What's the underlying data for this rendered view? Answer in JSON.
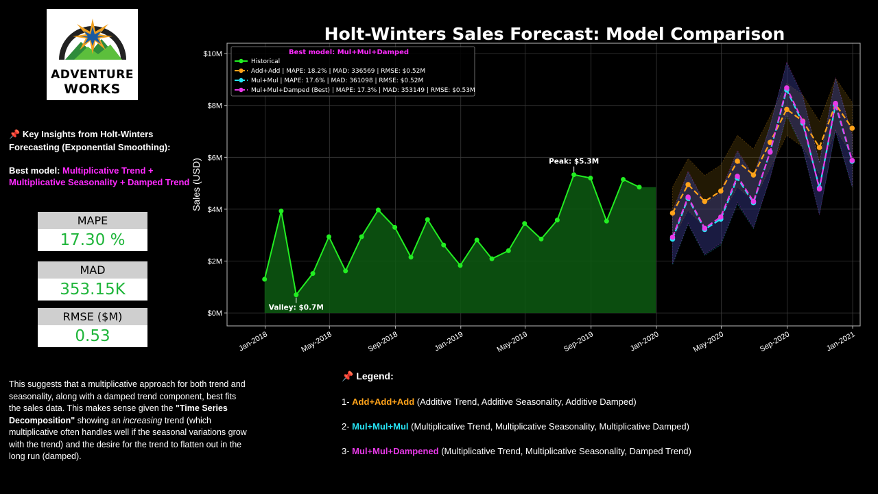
{
  "logo": {
    "line1": "ADVENTURE",
    "line2": "WORKS"
  },
  "insights": {
    "title": "Key Insights from Holt-Winters Forecasting (Exponential Smoothing):",
    "best_model_label": "Best model:",
    "best_model_value": "Multiplicative Trend + Multiplicative Seasonality + Damped Trend"
  },
  "metrics": [
    {
      "label": "MAPE",
      "value": "17.30 %"
    },
    {
      "label": "MAD",
      "value": "353.15K"
    },
    {
      "label": "RMSE ($M)",
      "value": "0.53"
    }
  ],
  "summary": {
    "part1": "This suggests that a multiplicative approach for both trend and seasonality, along with a damped trend component, best fits the sales data. This makes sense given the ",
    "bold": "\"Time Series Decomposition\"",
    "part2": " showing an ",
    "italic": "increasing",
    "part3": " trend (which multiplicative often handles well if the seasonal variations grow with the trend) and the desire for the trend to flatten out in the long run (damped)."
  },
  "legend_section": {
    "title": "Legend:",
    "items": [
      {
        "prefix": "1- ",
        "name": "Add+Add+Add",
        "desc": " (Additive Trend, Additive Seasonality, Additive Damped)",
        "color": "#ffa31a"
      },
      {
        "prefix": "2- ",
        "name": "Mul+Mul+Mul",
        "desc": " (Multiplicative Trend, Multiplicative Seasonality, Multiplicative Damped)",
        "color": "#27e4f4"
      },
      {
        "prefix": "3- ",
        "name": "Mul+Mul+Dampened",
        "desc": " (Multiplicative Trend, Multiplicative Seasonality, Damped Trend)",
        "color": "#e83ae8"
      }
    ]
  },
  "chart_data": {
    "type": "line",
    "title": "Holt-Winters Sales Forecast: Model Comparison",
    "ylabel": "Sales (USD)",
    "xlabel": "",
    "ylim": [
      -0.5,
      10.4
    ],
    "xlim": [
      "2017-10-22",
      "2021-01-15"
    ],
    "y_unit": "$M",
    "yticks": [
      0,
      2,
      4,
      6,
      8,
      10
    ],
    "ytick_labels": [
      "$0M",
      "$2M",
      "$4M",
      "$6M",
      "$8M",
      "$10M"
    ],
    "xticks": [
      "2018-01-01",
      "2018-05-01",
      "2018-09-01",
      "2019-01-01",
      "2019-05-01",
      "2019-09-01",
      "2020-01-01",
      "2020-05-01",
      "2020-09-01",
      "2021-01-01"
    ],
    "xtick_labels": [
      "Jan-2018",
      "May-2018",
      "Sep-2018",
      "Jan-2019",
      "May-2019",
      "Sep-2019",
      "Jan-2020",
      "May-2020",
      "Sep-2020",
      "Jan-2021"
    ],
    "grid": true,
    "legend": {
      "title": "Best model: Mul+Mul+Damped",
      "position": "top-left",
      "entries": [
        "Historical",
        "Add+Add | MAPE: 18.2% | MAD: 336569 | RMSE: $0.52M",
        "Mul+Mul | MAPE: 17.6% | MAD: 361098 | RMSE: $0.52M",
        "Mul+Mul+Damped (Best) | MAPE: 17.3% | MAD: 353149 | RMSE: $0.53M"
      ]
    },
    "historical": {
      "name": "Historical",
      "color": "#22ee22",
      "x": [
        "2017-12-31",
        "2018-01-31",
        "2018-02-28",
        "2018-03-31",
        "2018-04-30",
        "2018-05-31",
        "2018-06-30",
        "2018-07-31",
        "2018-08-31",
        "2018-09-30",
        "2018-10-31",
        "2018-11-30",
        "2018-12-31",
        "2019-01-31",
        "2019-02-28",
        "2019-03-31",
        "2019-04-30",
        "2019-05-31",
        "2019-06-30",
        "2019-07-31",
        "2019-08-31",
        "2019-09-30",
        "2019-10-31",
        "2019-11-30",
        "2019-12-31"
      ],
      "y": [
        1.3,
        3.93,
        0.7,
        1.52,
        2.94,
        1.62,
        2.94,
        3.97,
        3.3,
        2.15,
        3.6,
        2.62,
        1.83,
        2.81,
        2.09,
        2.4,
        3.45,
        2.85,
        3.58,
        5.33,
        5.2,
        3.54,
        5.15,
        4.85,
        null
      ]
    },
    "forecast_x": [
      "2020-01-31",
      "2020-02-29",
      "2020-03-31",
      "2020-04-30",
      "2020-05-31",
      "2020-06-30",
      "2020-07-31",
      "2020-08-31",
      "2020-09-30",
      "2020-10-31",
      "2020-11-30",
      "2020-12-31"
    ],
    "series": [
      {
        "name": "Add+Add",
        "color": "#ffa31a",
        "values": [
          3.85,
          4.95,
          4.3,
          4.7,
          5.85,
          5.32,
          6.58,
          7.85,
          7.4,
          6.38,
          8.05,
          7.12
        ],
        "lower": [
          2.85,
          3.95,
          3.3,
          3.7,
          4.85,
          4.32,
          5.58,
          6.85,
          6.4,
          5.38,
          7.05,
          6.12
        ],
        "upper": [
          4.85,
          5.95,
          5.3,
          5.7,
          6.85,
          6.32,
          7.58,
          8.85,
          8.4,
          7.38,
          9.05,
          8.12
        ]
      },
      {
        "name": "Mul+Mul",
        "color": "#27e4f4",
        "values": [
          2.85,
          4.42,
          3.22,
          3.62,
          5.2,
          4.25,
          6.22,
          8.6,
          7.32,
          4.82,
          8.02,
          5.85
        ],
        "lower": [
          1.85,
          3.42,
          2.22,
          2.62,
          4.2,
          3.25,
          5.22,
          7.6,
          6.32,
          3.82,
          7.02,
          4.85
        ],
        "upper": [
          3.85,
          5.42,
          4.22,
          4.62,
          6.2,
          5.25,
          7.22,
          9.6,
          8.32,
          5.82,
          9.02,
          6.85
        ]
      },
      {
        "name": "Mul+Mul+Damped (Best)",
        "color": "#e83ae8",
        "values": [
          2.92,
          4.47,
          3.27,
          3.7,
          5.27,
          4.3,
          6.2,
          8.68,
          7.38,
          4.78,
          8.08,
          5.88
        ],
        "lower": [
          1.92,
          3.47,
          2.27,
          2.7,
          4.27,
          3.3,
          5.2,
          7.68,
          6.38,
          3.78,
          7.08,
          4.88
        ],
        "upper": [
          3.92,
          5.47,
          4.27,
          4.7,
          6.27,
          5.3,
          7.2,
          9.68,
          8.38,
          5.78,
          9.08,
          6.88
        ]
      }
    ],
    "annotations": [
      {
        "text": "Peak: $5.3M",
        "x": "2019-07-31",
        "y": 5.33,
        "placement": "above"
      },
      {
        "text": "Valley: $0.7M",
        "x": "2018-02-28",
        "y": 0.7,
        "placement": "below"
      }
    ]
  }
}
